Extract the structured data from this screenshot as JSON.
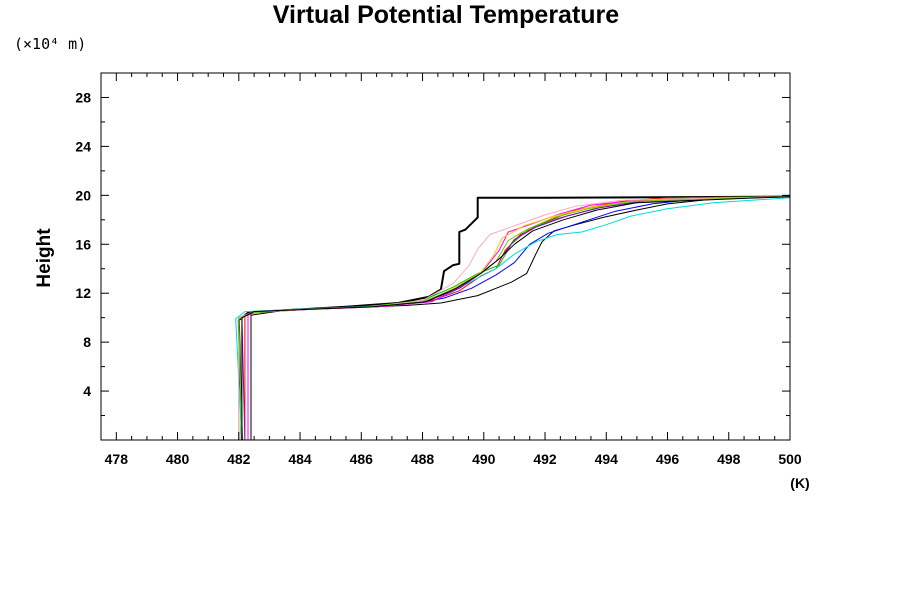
{
  "chart_data": {
    "type": "line",
    "title": "Virtual Potential Temperature",
    "ylabel": "Height",
    "yunit": "(×10⁴ m)",
    "xunit": "(K)",
    "xlim": [
      477.5,
      500
    ],
    "ylim": [
      0,
      30
    ],
    "xticks": [
      478,
      480,
      482,
      484,
      486,
      488,
      490,
      492,
      494,
      496,
      498,
      500
    ],
    "yticks": [
      4,
      8,
      12,
      16,
      20,
      24,
      28
    ],
    "grid": false,
    "legend": "none",
    "series": [
      {
        "color": "#000000",
        "width": 2,
        "points": [
          [
            482.1,
            0
          ],
          [
            482.0,
            9.8
          ],
          [
            482.3,
            10.4
          ],
          [
            483.5,
            10.6
          ],
          [
            485.5,
            10.9
          ],
          [
            487.2,
            11.2
          ],
          [
            488.2,
            11.7
          ],
          [
            488.6,
            12.3
          ],
          [
            488.7,
            13.8
          ],
          [
            489.0,
            14.3
          ],
          [
            489.2,
            14.4
          ],
          [
            489.2,
            17.0
          ],
          [
            489.4,
            17.2
          ],
          [
            489.8,
            18.2
          ],
          [
            489.8,
            19.8
          ],
          [
            492.0,
            19.8
          ],
          [
            500.0,
            19.9
          ]
        ]
      },
      {
        "color": "#000000",
        "width": 1,
        "points": [
          [
            482.4,
            0
          ],
          [
            482.4,
            10.2
          ],
          [
            483.5,
            10.6
          ],
          [
            485.5,
            10.8
          ],
          [
            487.5,
            11.0
          ],
          [
            488.6,
            11.2
          ],
          [
            489.8,
            11.8
          ],
          [
            490.9,
            12.9
          ],
          [
            491.4,
            13.6
          ],
          [
            491.7,
            15.2
          ],
          [
            491.9,
            16.2
          ],
          [
            492.3,
            17.1
          ],
          [
            493.0,
            17.6
          ],
          [
            493.9,
            18.2
          ],
          [
            495.0,
            18.8
          ],
          [
            496.0,
            19.3
          ],
          [
            497.5,
            19.7
          ],
          [
            500.0,
            19.9
          ]
        ]
      },
      {
        "color": "#0000ff",
        "width": 1,
        "points": [
          [
            482.1,
            0
          ],
          [
            482.0,
            10.0
          ],
          [
            482.5,
            10.5
          ],
          [
            484.0,
            10.7
          ],
          [
            486.0,
            10.9
          ],
          [
            487.8,
            11.2
          ],
          [
            488.7,
            11.6
          ],
          [
            489.6,
            12.4
          ],
          [
            490.4,
            13.5
          ],
          [
            491.0,
            14.5
          ],
          [
            491.5,
            16.0
          ],
          [
            492.1,
            16.9
          ],
          [
            493.2,
            17.8
          ],
          [
            494.3,
            18.7
          ],
          [
            495.5,
            19.3
          ],
          [
            497.0,
            19.7
          ],
          [
            500.0,
            19.9
          ]
        ]
      },
      {
        "color": "#ff0000",
        "width": 1,
        "points": [
          [
            482.2,
            0
          ],
          [
            482.2,
            10.1
          ],
          [
            482.6,
            10.5
          ],
          [
            484.5,
            10.7
          ],
          [
            486.5,
            10.9
          ],
          [
            488.2,
            11.3
          ],
          [
            489.2,
            12.2
          ],
          [
            489.9,
            13.4
          ],
          [
            490.4,
            14.0
          ],
          [
            490.7,
            15.5
          ],
          [
            491.2,
            16.8
          ],
          [
            492.0,
            17.8
          ],
          [
            493.0,
            18.8
          ],
          [
            494.5,
            19.5
          ],
          [
            496.0,
            19.8
          ],
          [
            500.0,
            19.9
          ]
        ]
      },
      {
        "color": "#00c800",
        "width": 1,
        "points": [
          [
            482.0,
            0
          ],
          [
            482.0,
            9.9
          ],
          [
            482.4,
            10.4
          ],
          [
            484.2,
            10.7
          ],
          [
            486.2,
            10.9
          ],
          [
            488.0,
            11.4
          ],
          [
            489.0,
            12.5
          ],
          [
            489.8,
            13.6
          ],
          [
            490.5,
            14.3
          ],
          [
            490.9,
            16.0
          ],
          [
            491.5,
            17.3
          ],
          [
            492.4,
            18.1
          ],
          [
            493.6,
            18.9
          ],
          [
            495.0,
            19.5
          ],
          [
            496.8,
            19.8
          ],
          [
            500.0,
            19.9
          ]
        ]
      },
      {
        "color": "#00dcdc",
        "width": 1,
        "points": [
          [
            482.1,
            0
          ],
          [
            481.9,
            9.9
          ],
          [
            482.2,
            10.5
          ],
          [
            484.0,
            10.7
          ],
          [
            486.0,
            10.9
          ],
          [
            487.8,
            11.2
          ],
          [
            488.9,
            12.0
          ],
          [
            489.7,
            13.1
          ],
          [
            490.4,
            14.0
          ],
          [
            491.0,
            15.2
          ],
          [
            491.7,
            16.2
          ],
          [
            492.4,
            16.8
          ],
          [
            493.2,
            17.0
          ],
          [
            494.0,
            17.6
          ],
          [
            494.8,
            18.3
          ],
          [
            496.0,
            18.9
          ],
          [
            497.5,
            19.4
          ],
          [
            500.0,
            19.8
          ]
        ]
      },
      {
        "color": "#ff00ff",
        "width": 1,
        "points": [
          [
            482.3,
            0
          ],
          [
            482.3,
            10.2
          ],
          [
            482.6,
            10.5
          ],
          [
            484.6,
            10.7
          ],
          [
            486.6,
            10.9
          ],
          [
            488.3,
            11.3
          ],
          [
            489.3,
            12.6
          ],
          [
            490.0,
            13.9
          ],
          [
            490.5,
            15.5
          ],
          [
            490.8,
            17.0
          ],
          [
            491.5,
            17.6
          ],
          [
            492.5,
            18.5
          ],
          [
            493.5,
            19.2
          ],
          [
            495.0,
            19.6
          ],
          [
            500.0,
            19.9
          ]
        ]
      },
      {
        "color": "#ffc800",
        "width": 1,
        "points": [
          [
            482.2,
            0
          ],
          [
            482.1,
            10.0
          ],
          [
            482.5,
            10.5
          ],
          [
            484.4,
            10.7
          ],
          [
            486.4,
            10.9
          ],
          [
            488.1,
            11.3
          ],
          [
            489.1,
            12.5
          ],
          [
            489.9,
            13.7
          ],
          [
            490.3,
            15.0
          ],
          [
            490.6,
            16.5
          ],
          [
            491.3,
            17.5
          ],
          [
            492.3,
            18.3
          ],
          [
            493.4,
            19.0
          ],
          [
            494.8,
            19.5
          ],
          [
            500.0,
            19.9
          ]
        ]
      },
      {
        "color": "#ffaabe",
        "width": 1,
        "points": [
          [
            482.0,
            0
          ],
          [
            482.0,
            10.0
          ],
          [
            482.4,
            10.4
          ],
          [
            484.3,
            10.7
          ],
          [
            486.3,
            10.9
          ],
          [
            488.0,
            11.4
          ],
          [
            489.0,
            12.8
          ],
          [
            489.5,
            14.2
          ],
          [
            489.8,
            15.6
          ],
          [
            490.2,
            16.8
          ],
          [
            491.0,
            17.5
          ],
          [
            492.0,
            18.4
          ],
          [
            493.0,
            19.1
          ],
          [
            494.5,
            19.6
          ],
          [
            500.0,
            19.9
          ]
        ]
      },
      {
        "color": "#8c00c8",
        "width": 1,
        "points": [
          [
            482.2,
            0
          ],
          [
            482.1,
            10.0
          ],
          [
            482.5,
            10.5
          ],
          [
            484.3,
            10.7
          ],
          [
            486.3,
            10.9
          ],
          [
            488.1,
            11.3
          ],
          [
            489.2,
            12.4
          ],
          [
            490.0,
            13.8
          ],
          [
            490.6,
            15.0
          ],
          [
            491.0,
            16.4
          ],
          [
            491.7,
            17.4
          ],
          [
            492.7,
            18.3
          ],
          [
            493.8,
            19.0
          ],
          [
            495.2,
            19.5
          ],
          [
            500.0,
            19.9
          ]
        ]
      },
      {
        "color": "#78c800",
        "width": 1,
        "points": [
          [
            482.1,
            0
          ],
          [
            482.0,
            9.9
          ],
          [
            482.4,
            10.4
          ],
          [
            484.2,
            10.7
          ],
          [
            486.2,
            10.9
          ],
          [
            488.0,
            11.3
          ],
          [
            489.0,
            12.3
          ],
          [
            489.8,
            13.5
          ],
          [
            490.4,
            14.6
          ],
          [
            490.8,
            16.3
          ],
          [
            491.4,
            17.2
          ],
          [
            492.3,
            18.2
          ],
          [
            493.4,
            18.9
          ],
          [
            494.8,
            19.5
          ],
          [
            500.0,
            19.9
          ]
        ]
      },
      {
        "color": "#000000",
        "width": 1,
        "points": [
          [
            482.1,
            0
          ],
          [
            482.1,
            10.0
          ],
          [
            482.5,
            10.5
          ],
          [
            484.4,
            10.7
          ],
          [
            486.4,
            10.9
          ],
          [
            488.1,
            11.3
          ],
          [
            489.1,
            12.4
          ],
          [
            489.9,
            13.6
          ],
          [
            490.5,
            14.8
          ],
          [
            491.0,
            16.0
          ],
          [
            491.6,
            17.1
          ],
          [
            492.6,
            18.0
          ],
          [
            493.7,
            18.8
          ],
          [
            495.0,
            19.4
          ],
          [
            500.0,
            19.9
          ]
        ]
      }
    ]
  }
}
